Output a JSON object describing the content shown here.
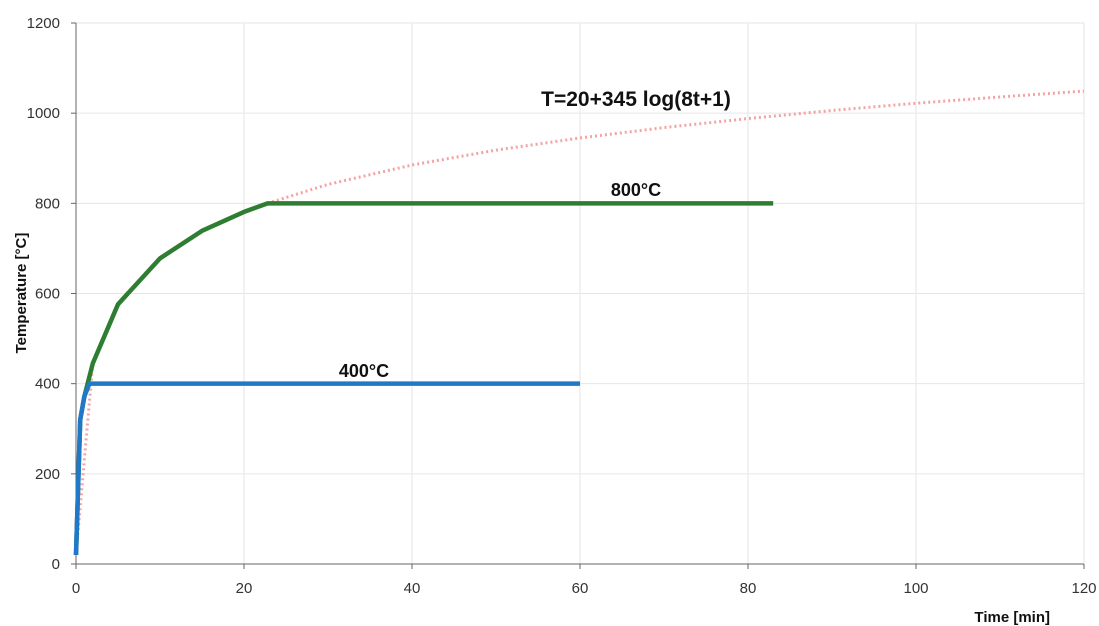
{
  "chart_data": {
    "type": "line",
    "xlabel": "Time [min]",
    "ylabel": "Temperature [°C]",
    "xlim": [
      0,
      120
    ],
    "ylim": [
      0,
      1200
    ],
    "xticks": [
      0,
      20,
      40,
      60,
      80,
      100,
      120
    ],
    "yticks": [
      0,
      200,
      400,
      600,
      800,
      1000,
      1200
    ],
    "grid": true,
    "colors": {
      "iso_curve": "#f4a3a3",
      "series_800": "#2e7d32",
      "series_400": "#1f78c8",
      "grid": "#e6e6e6",
      "axis": "#666666"
    },
    "annotations": {
      "iso": "T=20+345 log(8t+1)",
      "s800": "800°C",
      "s400": "400°C"
    },
    "series": [
      {
        "formula": "T=20+345 log(8t+1)",
        "style": "dotted",
        "x": [
          0,
          2,
          5,
          10,
          15,
          20,
          22.8,
          30,
          40,
          50,
          60,
          70,
          80,
          90,
          100,
          110,
          120
        ],
        "y": [
          20,
          445,
          576,
          678,
          739,
          781,
          800,
          842,
          885,
          918,
          945,
          968,
          988,
          1006,
          1022,
          1036,
          1049
        ]
      },
      {
        "x": [
          0,
          0.5,
          1,
          2,
          5,
          10,
          15,
          20,
          22.8,
          83
        ],
        "y": [
          20,
          320,
          372,
          445,
          576,
          678,
          739,
          781,
          800,
          800
        ]
      },
      {
        "x": [
          0,
          0.5,
          1,
          1.6,
          60
        ],
        "y": [
          20,
          320,
          372,
          400,
          400
        ]
      }
    ]
  }
}
